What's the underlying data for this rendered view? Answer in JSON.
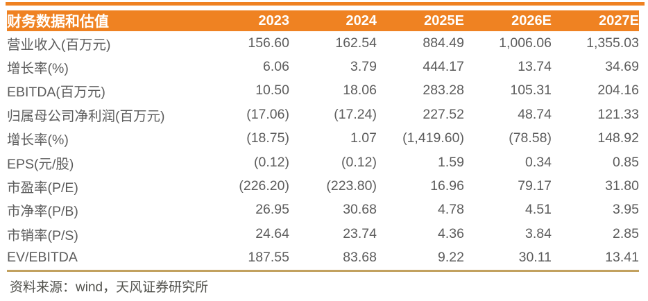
{
  "colors": {
    "accent": "#EF8222",
    "divider": "#C2A15F",
    "text": "#5C5C5C",
    "footer": "#51514C",
    "header_text": "#FFFFFF",
    "background": "#FFFFFF"
  },
  "table": {
    "title": "财务数据和估值",
    "columns": [
      "2023",
      "2024",
      "2025E",
      "2026E",
      "2027E"
    ],
    "rows": [
      {
        "label": "营业收入(百万元)",
        "values": [
          "156.60",
          "162.54",
          "884.49",
          "1,006.06",
          "1,355.03"
        ]
      },
      {
        "label": "增长率(%)",
        "values": [
          "6.06",
          "3.79",
          "444.17",
          "13.74",
          "34.69"
        ]
      },
      {
        "label": "EBITDA(百万元)",
        "values": [
          "10.50",
          "18.06",
          "283.28",
          "105.31",
          "204.16"
        ]
      },
      {
        "label": "归属母公司净利润(百万元)",
        "values": [
          "(17.06)",
          "(17.24)",
          "227.52",
          "48.74",
          "121.33"
        ]
      },
      {
        "label": "增长率(%)",
        "values": [
          "(18.75)",
          "1.07",
          "(1,419.60)",
          "(78.58)",
          "148.92"
        ]
      },
      {
        "label": "EPS(元/股)",
        "values": [
          "(0.12)",
          "(0.12)",
          "1.59",
          "0.34",
          "0.85"
        ]
      },
      {
        "label": "市盈率(P/E)",
        "values": [
          "(226.20)",
          "(223.80)",
          "16.96",
          "79.17",
          "31.80"
        ]
      },
      {
        "label": "市净率(P/B)",
        "values": [
          "26.95",
          "30.68",
          "4.78",
          "4.51",
          "3.95"
        ]
      },
      {
        "label": "市销率(P/S)",
        "values": [
          "24.64",
          "23.74",
          "4.36",
          "3.84",
          "2.85"
        ]
      },
      {
        "label": "EV/EBITDA",
        "values": [
          "187.55",
          "83.68",
          "9.22",
          "30.11",
          "13.41"
        ]
      }
    ]
  },
  "footer": {
    "source_text": "资料来源：wind，天风证券研究所"
  }
}
